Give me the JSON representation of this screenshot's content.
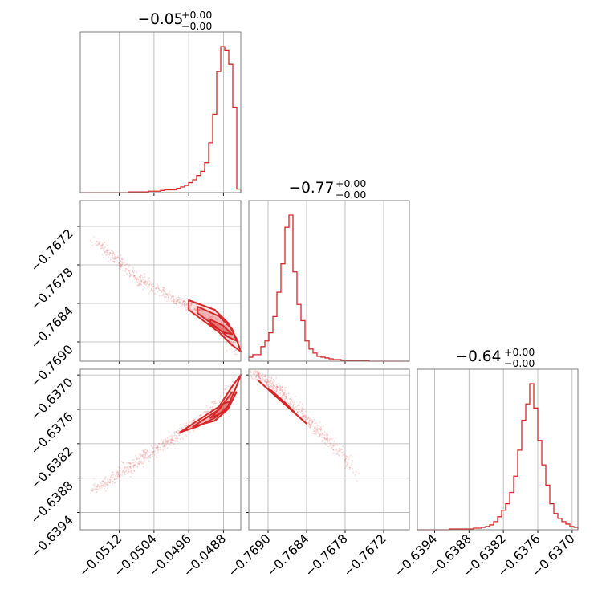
{
  "colors": {
    "series": "#d62728",
    "grid": "#b0b0b0",
    "frame": "#7f7f7f"
  },
  "chart_data": {
    "type": "corner",
    "grid": true,
    "parameters": [
      {
        "id": "p0",
        "title": {
          "value": "−0.05",
          "upper": "+0.00",
          "lower": "−0.00"
        },
        "range": [
          -0.0521,
          -0.0484
        ],
        "ticks": [
          -0.0512,
          -0.0504,
          -0.0496,
          -0.0488
        ],
        "tick_labels": [
          "−0.0512",
          "−0.0504",
          "−0.0496",
          "−0.0488"
        ],
        "histogram": {
          "edges_start": -0.0521,
          "bin_width": 9.25e-05,
          "counts": [
            0,
            0,
            0,
            0,
            0,
            0,
            0,
            0,
            0,
            0,
            0,
            0,
            1,
            1,
            1,
            1,
            1,
            2,
            2,
            2,
            3,
            4,
            4,
            4,
            6,
            8,
            10,
            14,
            18,
            24,
            30,
            42,
            70,
            110,
            170,
            205,
            200,
            180,
            120,
            5
          ]
        }
      },
      {
        "id": "p1",
        "title": {
          "value": "−0.77",
          "upper": "+0.00",
          "lower": "−0.00"
        },
        "range": [
          -0.7693,
          -0.7668
        ],
        "ticks": [
          -0.7672,
          -0.7678,
          -0.7684,
          -0.769
        ],
        "tick_labels": [
          "−0.7672",
          "−0.7678",
          "−0.7684",
          "−0.7690"
        ],
        "histogram": {
          "edges_start": -0.7693,
          "bin_width": 6.25e-05,
          "counts": [
            5,
            8,
            8,
            18,
            25,
            35,
            55,
            85,
            120,
            165,
            180,
            110,
            70,
            50,
            25,
            15,
            10,
            6,
            5,
            4,
            3,
            2,
            2,
            1,
            1,
            1,
            1,
            1,
            1,
            1,
            0,
            0,
            0,
            0,
            0,
            0,
            0,
            0,
            0,
            0
          ]
        }
      },
      {
        "id": "p2",
        "title": {
          "value": "−0.64",
          "upper": "+0.00",
          "lower": "−0.00"
        },
        "range": [
          -0.6397,
          -0.6369
        ],
        "ticks": [
          -0.6394,
          -0.6388,
          -0.6382,
          -0.6376,
          -0.637
        ],
        "tick_labels": [
          "−0.6394",
          "−0.6388",
          "−0.6382",
          "−0.6376",
          "−0.6370"
        ],
        "histogram": {
          "edges_start": -0.6397,
          "bin_width": 7e-05,
          "counts": [
            0,
            0,
            0,
            0,
            0,
            0,
            0,
            0,
            1,
            1,
            1,
            1,
            1,
            1,
            2,
            2,
            3,
            4,
            6,
            10,
            16,
            24,
            32,
            46,
            66,
            98,
            135,
            155,
            180,
            150,
            110,
            80,
            55,
            32,
            20,
            14,
            10,
            7,
            4,
            3
          ]
        }
      }
    ],
    "pairs": [
      {
        "x": "p0",
        "y": "p1",
        "ridge": [
          [
            -0.0518,
            -0.7674
          ],
          [
            -0.0508,
            -0.768
          ],
          [
            -0.05,
            -0.7683
          ],
          [
            -0.0494,
            -0.7685
          ],
          [
            -0.049,
            -0.7687
          ],
          [
            -0.0487,
            -0.7689
          ],
          [
            -0.0485,
            -0.7692
          ]
        ],
        "levels": [
          [
            [
              -0.0496,
              -0.76835
            ],
            [
              -0.049,
              -0.7685
            ],
            [
              -0.0487,
              -0.7687
            ],
            [
              -0.0485,
              -0.76895
            ],
            [
              -0.0484,
              -0.76915
            ],
            [
              -0.0486,
              -0.76905
            ],
            [
              -0.0489,
              -0.76885
            ],
            [
              -0.0493,
              -0.76865
            ],
            [
              -0.0496,
              -0.7685
            ]
          ],
          [
            [
              -0.0494,
              -0.76845
            ],
            [
              -0.0489,
              -0.7686
            ],
            [
              -0.0486,
              -0.7688
            ],
            [
              -0.0485,
              -0.76898
            ],
            [
              -0.0487,
              -0.76892
            ],
            [
              -0.049,
              -0.76875
            ],
            [
              -0.0494,
              -0.76855
            ]
          ],
          [
            [
              -0.0491,
              -0.76865
            ],
            [
              -0.0488,
              -0.76875
            ],
            [
              -0.0486,
              -0.76888
            ],
            [
              -0.0488,
              -0.76885
            ],
            [
              -0.0491,
              -0.76873
            ]
          ]
        ]
      },
      {
        "x": "p0",
        "y": "p2",
        "ridge": [
          [
            -0.0518,
            -0.639
          ],
          [
            -0.051,
            -0.6386
          ],
          [
            -0.0502,
            -0.6382
          ],
          [
            -0.0496,
            -0.6379
          ],
          [
            -0.0491,
            -0.6376
          ],
          [
            -0.0487,
            -0.6373
          ],
          [
            -0.0485,
            -0.637
          ]
        ],
        "levels": [
          [
            [
              -0.0498,
              -0.638
            ],
            [
              -0.0494,
              -0.6379
            ],
            [
              -0.049,
              -0.63775
            ],
            [
              -0.0487,
              -0.63755
            ],
            [
              -0.0485,
              -0.6372
            ],
            [
              -0.0484,
              -0.637
            ],
            [
              -0.0486,
              -0.6372
            ],
            [
              -0.0489,
              -0.63755
            ],
            [
              -0.0493,
              -0.63775
            ],
            [
              -0.0497,
              -0.63795
            ]
          ],
          [
            [
              -0.0495,
              -0.6379
            ],
            [
              -0.049,
              -0.6378
            ],
            [
              -0.0487,
              -0.6376
            ],
            [
              -0.0485,
              -0.6373
            ],
            [
              -0.0486,
              -0.6373
            ],
            [
              -0.0489,
              -0.6376
            ],
            [
              -0.0494,
              -0.63785
            ]
          ],
          [
            [
              -0.0491,
              -0.63775
            ],
            [
              -0.0488,
              -0.63765
            ],
            [
              -0.0486,
              -0.63745
            ],
            [
              -0.0488,
              -0.6375
            ],
            [
              -0.049,
              -0.63768
            ]
          ]
        ]
      },
      {
        "x": "p1",
        "y": "p2",
        "ridge": [
          [
            -0.7693,
            -0.6369
          ],
          [
            -0.7688,
            -0.6373
          ],
          [
            -0.7683,
            -0.6379
          ],
          [
            -0.7679,
            -0.6383
          ],
          [
            -0.7676,
            -0.6388
          ]
        ],
        "levels": [
          [
            [
              -0.76915,
              -0.6371
            ],
            [
              -0.7688,
              -0.63745
            ],
            [
              -0.76845,
              -0.6378
            ],
            [
              -0.7684,
              -0.63785
            ],
            [
              -0.76875,
              -0.6375
            ],
            [
              -0.7691,
              -0.63715
            ]
          ],
          [
            [
              -0.769,
              -0.63725
            ],
            [
              -0.76875,
              -0.6375
            ],
            [
              -0.76855,
              -0.6377
            ],
            [
              -0.7687,
              -0.63752
            ],
            [
              -0.76895,
              -0.63727
            ]
          ]
        ]
      }
    ]
  }
}
